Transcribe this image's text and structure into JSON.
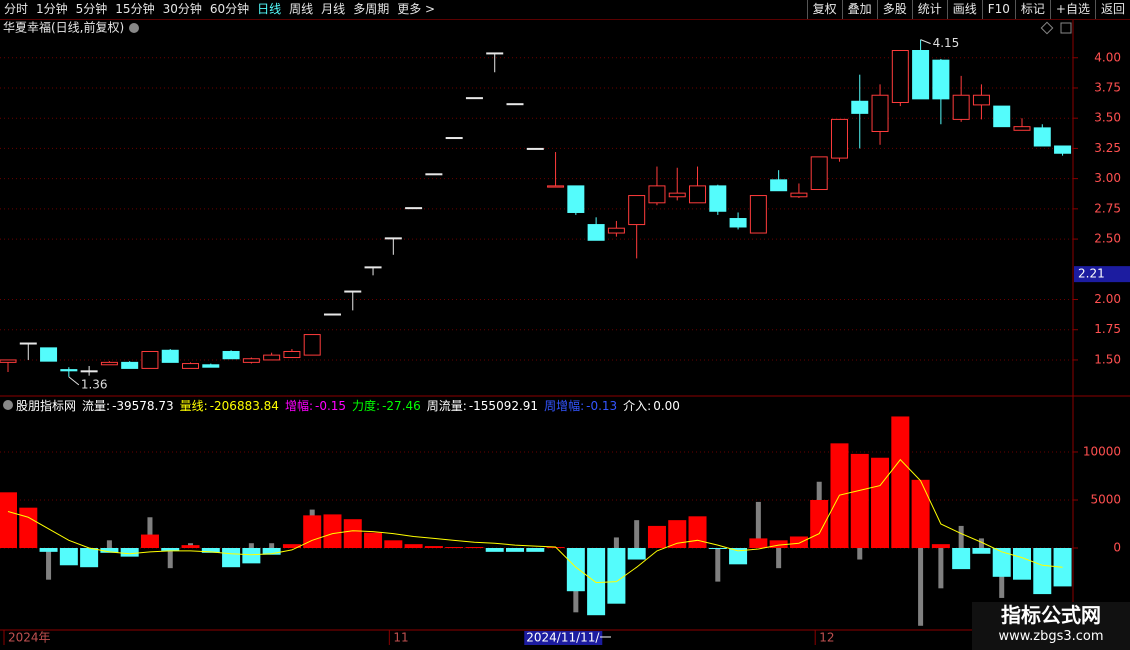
{
  "toolbar": {
    "left": [
      "分时",
      "1分钟",
      "5分钟",
      "15分钟",
      "30分钟",
      "60分钟",
      "日线",
      "周线",
      "月线",
      "多周期",
      "更多 >"
    ],
    "right": [
      "复权",
      "叠加",
      "多股",
      "统计",
      "画线",
      "F10",
      "标记",
      "+自选",
      "返回"
    ]
  },
  "chart_data": [
    {
      "type": "candlestick",
      "title": "华夏幸福(日线,前复权)",
      "open": [
        1.48,
        1.64,
        1.6,
        1.42,
        1.41,
        1.46,
        1.48,
        1.43,
        1.58,
        1.43,
        1.46,
        1.57,
        1.48,
        1.5,
        1.52,
        1.54,
        1.88,
        2.07,
        2.27,
        2.51,
        2.76,
        3.04,
        3.34,
        3.67,
        4.04,
        3.62,
        3.25,
        2.93,
        2.94,
        2.62,
        2.55,
        2.62,
        2.8,
        2.85,
        2.8,
        2.94,
        2.67,
        2.55,
        2.99,
        2.85,
        2.91,
        3.17,
        3.64,
        3.39,
        3.63,
        4.06,
        3.98,
        3.49,
        3.61,
        3.6,
        3.4,
        3.42,
        3.27
      ],
      "high": [
        1.5,
        1.64,
        1.6,
        1.44,
        1.45,
        1.49,
        1.49,
        1.57,
        1.59,
        1.48,
        1.47,
        1.58,
        1.52,
        1.56,
        1.59,
        1.71,
        1.88,
        2.07,
        2.27,
        2.51,
        2.76,
        3.04,
        3.34,
        3.67,
        4.04,
        3.62,
        3.25,
        3.22,
        2.94,
        2.68,
        2.65,
        2.86,
        3.1,
        3.09,
        3.1,
        2.95,
        2.72,
        2.86,
        3.07,
        2.96,
        3.18,
        3.49,
        3.86,
        3.78,
        4.06,
        4.15,
        3.99,
        3.85,
        3.78,
        3.6,
        3.5,
        3.45,
        3.27
      ],
      "low": [
        1.4,
        1.5,
        1.49,
        1.36,
        1.37,
        1.46,
        1.43,
        1.43,
        1.48,
        1.43,
        1.44,
        1.51,
        1.47,
        1.5,
        1.52,
        1.54,
        1.88,
        1.91,
        2.2,
        2.37,
        2.76,
        3.04,
        3.34,
        3.67,
        3.88,
        3.62,
        3.25,
        2.93,
        2.7,
        2.49,
        2.52,
        2.34,
        2.78,
        2.82,
        2.8,
        2.7,
        2.58,
        2.55,
        2.9,
        2.84,
        2.91,
        3.14,
        3.25,
        3.28,
        3.6,
        3.66,
        3.45,
        3.47,
        3.49,
        3.43,
        3.4,
        3.27,
        3.19
      ],
      "close": [
        1.5,
        1.64,
        1.49,
        1.41,
        1.41,
        1.48,
        1.43,
        1.57,
        1.48,
        1.47,
        1.44,
        1.51,
        1.51,
        1.54,
        1.57,
        1.71,
        1.88,
        2.07,
        2.27,
        2.51,
        2.76,
        3.04,
        3.34,
        3.67,
        4.04,
        3.62,
        3.25,
        2.94,
        2.72,
        2.49,
        2.59,
        2.86,
        2.94,
        2.88,
        2.94,
        2.73,
        2.6,
        2.86,
        2.9,
        2.88,
        3.18,
        3.49,
        3.54,
        3.69,
        4.06,
        3.66,
        3.66,
        3.69,
        3.69,
        3.43,
        3.43,
        3.27,
        3.21
      ],
      "colors": {
        "up": "#ff3c3c",
        "down": "#54fcfc",
        "flat": "#e8e8e8"
      },
      "ylim": [
        1.21,
        4.18
      ],
      "yticks": [
        {
          "value": 1.5,
          "label": "1.50"
        },
        {
          "value": 1.75,
          "label": "1.75"
        },
        {
          "value": 2,
          "label": "2.00"
        },
        {
          "value": 2.5,
          "label": "2.50"
        },
        {
          "value": 2.75,
          "label": "2.75"
        },
        {
          "value": 3,
          "label": "3.00"
        },
        {
          "value": 3.25,
          "label": "3.25"
        },
        {
          "value": 3.5,
          "label": "3.50"
        },
        {
          "value": 3.75,
          "label": "3.75"
        },
        {
          "value": 4,
          "label": "4.00"
        }
      ],
      "cursor_price": 2.21,
      "annotations": [
        {
          "index": 45,
          "value": 4.15
        },
        {
          "index": 3,
          "value": 1.36
        }
      ],
      "grid": true
    },
    {
      "type": "bar",
      "title": "股朋指标网",
      "legend": [
        {
          "label": "流量:",
          "value": "-39578.73",
          "color": "#ffffff"
        },
        {
          "label": "量线:",
          "value": "-206883.84",
          "color": "#ffff00"
        },
        {
          "label": "增幅:",
          "value": "-0.15",
          "color": "#ff00ff"
        },
        {
          "label": "力度:",
          "value": "-27.46",
          "color": "#00ff00"
        },
        {
          "label": "周流量:",
          "value": "-155092.91",
          "color": "#ffffff"
        },
        {
          "label": "周增幅:",
          "value": "-0.13",
          "color": "#3355ff"
        },
        {
          "label": "介入:",
          "value": "0.00",
          "color": "#ffffff"
        }
      ],
      "values": [
        5800,
        4200,
        -400,
        -1800,
        -2000,
        -500,
        -900,
        1400,
        -300,
        300,
        -500,
        -2000,
        -1600,
        -700,
        400,
        3400,
        3500,
        3000,
        1600,
        800,
        400,
        200,
        100,
        100,
        -400,
        -400,
        -400,
        100,
        -4500,
        -7000,
        -5800,
        -1200,
        2300,
        2900,
        3300,
        -100,
        -1700,
        1000,
        800,
        1200,
        5000,
        10900,
        9800,
        9400,
        13700,
        7100,
        400,
        -2200,
        -600,
        -3000,
        -3300,
        -4800,
        -4000
      ],
      "secondary": [
        null,
        null,
        -3300,
        null,
        null,
        800,
        null,
        3200,
        -2100,
        500,
        null,
        null,
        500,
        500,
        null,
        4000,
        null,
        null,
        null,
        null,
        null,
        null,
        null,
        null,
        null,
        null,
        null,
        null,
        -6700,
        null,
        1100,
        2900,
        null,
        null,
        null,
        -3500,
        null,
        4800,
        -2100,
        null,
        6900,
        null,
        -1200,
        null,
        null,
        -8100,
        -4200,
        2300,
        1000,
        -5200,
        null,
        null,
        null
      ],
      "line": [
        3800,
        3200,
        2000,
        800,
        0,
        -400,
        -600,
        -400,
        -300,
        -300,
        -400,
        -600,
        -700,
        -600,
        -200,
        800,
        1500,
        1800,
        1700,
        1500,
        1200,
        1000,
        800,
        600,
        500,
        300,
        200,
        100,
        -2000,
        -3600,
        -3500,
        -2000,
        -300,
        500,
        800,
        300,
        -300,
        -100,
        300,
        500,
        1500,
        5500,
        6000,
        6500,
        9200,
        7000,
        2500,
        1500,
        600,
        -400,
        -1000,
        -1800,
        -2000
      ],
      "colors": {
        "up": "#ff0000",
        "down": "#54fcfc",
        "secondary": "#808080",
        "line": "#ffff00"
      },
      "ylim": [
        -8540,
        14060
      ],
      "yticks": [
        0,
        5000,
        10000
      ],
      "xticks": [
        {
          "value": 0,
          "label": "2024年"
        },
        {
          "value": 19,
          "label": "11"
        },
        {
          "value": 40,
          "label": "12"
        }
      ],
      "cursor_label": {
        "value": 26,
        "label": "2024/11/11/一"
      },
      "grid": true
    }
  ],
  "watermark": {
    "title": "指标公式网",
    "url": "www.zbgs3.com"
  }
}
